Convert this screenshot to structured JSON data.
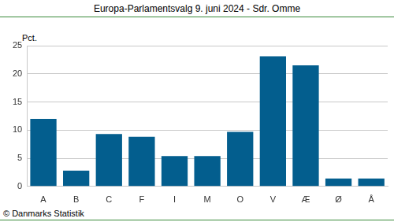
{
  "chart_data": {
    "type": "bar",
    "title": "Europa-Parlamentsvalg 9. juni 2024 - Sdr. Omme",
    "ylabel": "Pct.",
    "source": "© Danmarks Statistik",
    "categories": [
      "A",
      "B",
      "C",
      "F",
      "I",
      "M",
      "O",
      "V",
      "Æ",
      "Ø",
      "Å"
    ],
    "values": [
      12.0,
      2.8,
      9.3,
      8.8,
      5.4,
      5.4,
      9.7,
      23.1,
      21.5,
      1.4,
      1.4
    ],
    "color": "#035e8e",
    "ylim": [
      0,
      25
    ],
    "yticks": [
      0,
      5,
      10,
      15,
      20,
      25
    ],
    "grid": true
  }
}
